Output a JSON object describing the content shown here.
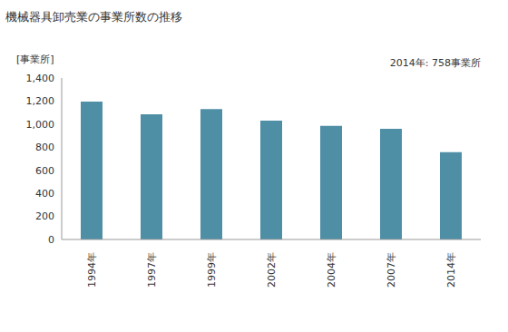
{
  "chart_data": {
    "type": "bar",
    "title": "機械器具卸売業の事業所数の推移",
    "subtitle": "2014年: 758事業所",
    "y_label": "[事業所]",
    "categories": [
      "1994年",
      "1997年",
      "1999年",
      "2002年",
      "2004年",
      "2007年",
      "2014年"
    ],
    "values": [
      1195,
      1085,
      1130,
      1030,
      985,
      960,
      758
    ],
    "color": "#4f8fa6",
    "ylim": [
      0,
      1400
    ],
    "yticks": [
      0,
      200,
      400,
      600,
      800,
      {
        "value": 1000,
        "label": "1,000"
      },
      {
        "value": 1200,
        "label": "1,200"
      },
      {
        "value": 1400,
        "label": "1,400"
      }
    ],
    "grid": false
  }
}
